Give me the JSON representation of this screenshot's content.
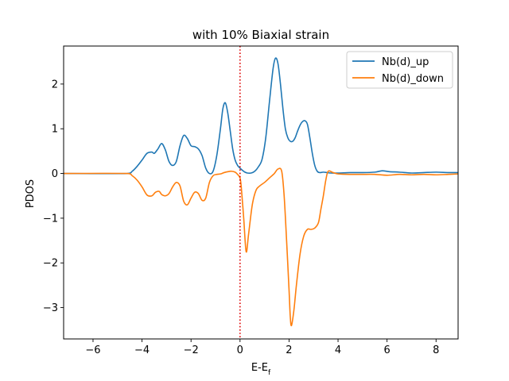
{
  "chart_data": {
    "type": "line",
    "title": "with 10%  Biaxial strain",
    "xlabel": "E-E",
    "xlabel_subscript": "f",
    "ylabel": "PDOS",
    "xlim": [
      -7.2,
      8.9
    ],
    "ylim": [
      -3.7,
      2.85
    ],
    "xticks": [
      -6,
      -4,
      -2,
      0,
      2,
      4,
      6,
      8
    ],
    "yticks": [
      -3,
      -2,
      -1,
      0,
      1,
      2
    ],
    "xtick_labels": [
      "−6",
      "−4",
      "−2",
      "0",
      "2",
      "4",
      "6",
      "8"
    ],
    "ytick_labels": [
      "−3",
      "−2",
      "−1",
      "0",
      "1",
      "2"
    ],
    "grid": false,
    "legend_position": "top-right",
    "vline": {
      "x": 0,
      "color": "#e00000",
      "style": "dotted"
    },
    "series": [
      {
        "name": "Nb(d)_up",
        "color": "#1f77b4",
        "x": [
          -7.2,
          -4.6,
          -4.4,
          -4.2,
          -4.0,
          -3.8,
          -3.6,
          -3.5,
          -3.35,
          -3.2,
          -3.05,
          -2.9,
          -2.75,
          -2.6,
          -2.45,
          -2.3,
          -2.15,
          -2.0,
          -1.85,
          -1.7,
          -1.55,
          -1.4,
          -1.25,
          -1.1,
          -0.95,
          -0.8,
          -0.7,
          -0.6,
          -0.5,
          -0.4,
          -0.3,
          -0.2,
          -0.1,
          0.0,
          0.1,
          0.2,
          0.3,
          0.45,
          0.6,
          0.75,
          0.9,
          1.05,
          1.2,
          1.35,
          1.45,
          1.55,
          1.65,
          1.75,
          1.85,
          1.95,
          2.05,
          2.15,
          2.25,
          2.35,
          2.45,
          2.55,
          2.65,
          2.75,
          2.85,
          2.95,
          3.05,
          3.15,
          3.25,
          3.4,
          3.55,
          3.7,
          4.0,
          4.5,
          5.0,
          5.5,
          5.8,
          6.1,
          6.5,
          7.0,
          7.5,
          8.0,
          8.5,
          8.9
        ],
        "values": [
          0.0,
          0.0,
          0.05,
          0.16,
          0.3,
          0.45,
          0.48,
          0.45,
          0.55,
          0.67,
          0.53,
          0.27,
          0.18,
          0.27,
          0.62,
          0.85,
          0.78,
          0.62,
          0.6,
          0.55,
          0.4,
          0.12,
          0.0,
          0.05,
          0.4,
          1.0,
          1.45,
          1.58,
          1.35,
          0.95,
          0.55,
          0.3,
          0.18,
          0.12,
          0.07,
          0.03,
          0.01,
          0.01,
          0.05,
          0.15,
          0.32,
          0.8,
          1.6,
          2.35,
          2.58,
          2.45,
          2.0,
          1.45,
          1.0,
          0.8,
          0.72,
          0.72,
          0.8,
          0.95,
          1.08,
          1.16,
          1.18,
          1.1,
          0.8,
          0.45,
          0.18,
          0.05,
          0.02,
          0.03,
          0.02,
          0.01,
          0.01,
          0.02,
          0.02,
          0.03,
          0.06,
          0.04,
          0.03,
          0.01,
          0.02,
          0.03,
          0.02,
          0.02
        ]
      },
      {
        "name": "Nb(d)_down",
        "color": "#ff7f0e",
        "x": [
          -7.2,
          -4.6,
          -4.4,
          -4.2,
          -4.0,
          -3.8,
          -3.6,
          -3.45,
          -3.3,
          -3.2,
          -3.05,
          -2.9,
          -2.75,
          -2.6,
          -2.45,
          -2.3,
          -2.15,
          -2.0,
          -1.85,
          -1.7,
          -1.55,
          -1.4,
          -1.25,
          -1.1,
          -0.95,
          -0.8,
          -0.65,
          -0.5,
          -0.35,
          -0.2,
          -0.1,
          0.0,
          0.05,
          0.15,
          0.25,
          0.35,
          0.5,
          0.65,
          0.8,
          1.0,
          1.2,
          1.4,
          1.55,
          1.7,
          1.8,
          1.9,
          2.0,
          2.05,
          2.1,
          2.2,
          2.3,
          2.45,
          2.6,
          2.75,
          2.9,
          3.05,
          3.2,
          3.3,
          3.4,
          3.5,
          3.6,
          3.8,
          4.0,
          4.5,
          5.0,
          5.5,
          6.0,
          6.5,
          7.0,
          7.5,
          8.0,
          8.5,
          8.9
        ],
        "values": [
          0.0,
          0.0,
          -0.05,
          -0.15,
          -0.3,
          -0.48,
          -0.5,
          -0.42,
          -0.4,
          -0.47,
          -0.5,
          -0.45,
          -0.3,
          -0.2,
          -0.28,
          -0.62,
          -0.7,
          -0.55,
          -0.42,
          -0.45,
          -0.6,
          -0.55,
          -0.2,
          -0.05,
          -0.02,
          -0.01,
          0.02,
          0.04,
          0.05,
          0.03,
          -0.02,
          -0.1,
          -0.3,
          -1.0,
          -1.75,
          -1.35,
          -0.7,
          -0.38,
          -0.28,
          -0.2,
          -0.1,
          0.0,
          0.1,
          0.05,
          -0.5,
          -1.5,
          -2.6,
          -3.2,
          -3.4,
          -3.05,
          -2.5,
          -1.8,
          -1.4,
          -1.25,
          -1.25,
          -1.22,
          -1.1,
          -0.8,
          -0.5,
          -0.15,
          0.05,
          0.02,
          -0.01,
          -0.02,
          -0.02,
          -0.02,
          -0.04,
          -0.02,
          -0.03,
          -0.02,
          -0.03,
          -0.02,
          -0.01
        ]
      }
    ]
  }
}
